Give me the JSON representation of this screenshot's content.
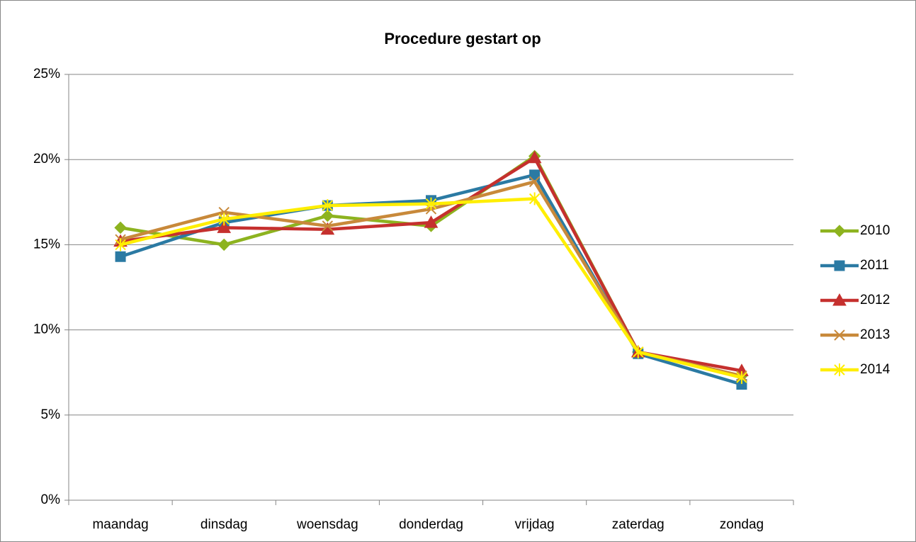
{
  "chart_data": {
    "type": "line",
    "title": "Procedure gestart op",
    "categories": [
      "maandag",
      "dinsdag",
      "woensdag",
      "donderdag",
      "vrijdag",
      "zaterdag",
      "zondag"
    ],
    "series": [
      {
        "name": "2010",
        "color": "#8db31f",
        "marker": "diamond",
        "values": [
          16.0,
          15.0,
          16.7,
          16.1,
          20.2,
          8.7,
          7.3
        ]
      },
      {
        "name": "2011",
        "color": "#2b7aa3",
        "marker": "square",
        "values": [
          14.3,
          16.3,
          17.3,
          17.6,
          19.1,
          8.6,
          6.8
        ]
      },
      {
        "name": "2012",
        "color": "#c5302e",
        "marker": "triangle",
        "values": [
          15.2,
          16.0,
          15.9,
          16.3,
          20.1,
          8.7,
          7.6
        ]
      },
      {
        "name": "2013",
        "color": "#c8893a",
        "marker": "x",
        "values": [
          15.3,
          16.9,
          16.1,
          17.1,
          18.7,
          8.7,
          7.3
        ]
      },
      {
        "name": "2014",
        "color": "#ffee00",
        "marker": "star",
        "values": [
          15.0,
          16.5,
          17.3,
          17.4,
          17.7,
          8.7,
          7.2
        ]
      }
    ],
    "ylim": [
      0,
      25
    ],
    "yticks": [
      {
        "value": 0,
        "label": "0%"
      },
      {
        "value": 5,
        "label": "5%"
      },
      {
        "value": 10,
        "label": "10%"
      },
      {
        "value": 15,
        "label": "15%"
      },
      {
        "value": 20,
        "label": "20%"
      },
      {
        "value": 25,
        "label": "25%"
      }
    ],
    "grid": true,
    "legend": "right"
  }
}
